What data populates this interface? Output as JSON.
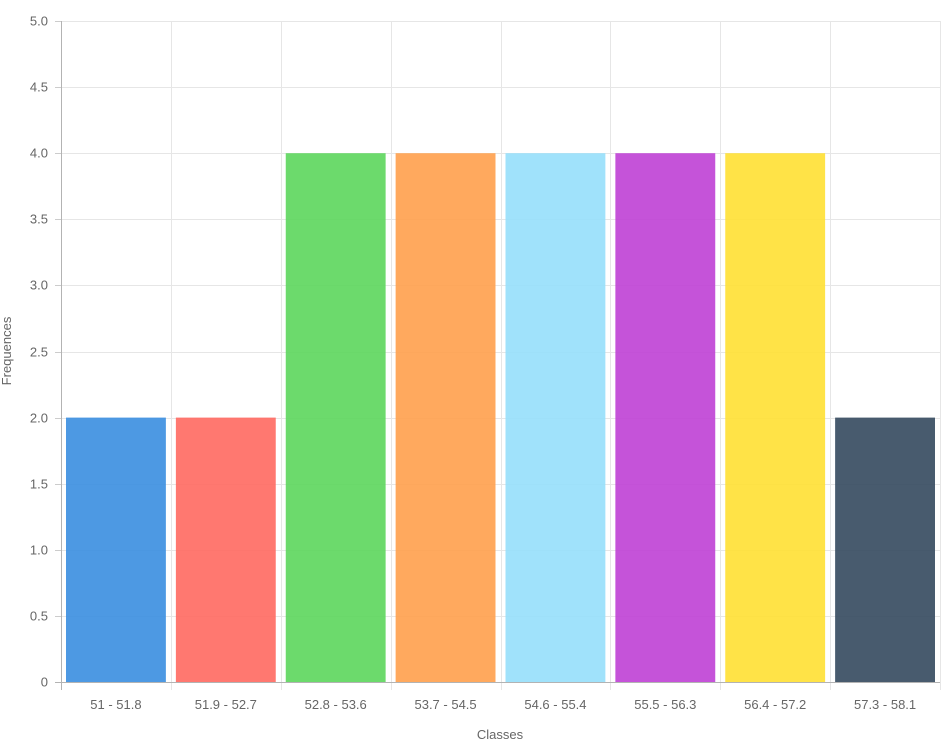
{
  "chart_data": {
    "type": "bar",
    "title": "",
    "xlabel": "Classes",
    "ylabel": "Frequences",
    "categories": [
      "51 - 51.8",
      "51.9 - 52.7",
      "52.8 - 53.6",
      "53.7 - 54.5",
      "54.6 - 55.4",
      "55.5 - 56.3",
      "56.4 - 57.2",
      "57.3 - 58.1"
    ],
    "values": [
      2,
      2,
      4,
      4,
      4,
      4,
      4,
      2
    ],
    "colors": [
      "#3a8ee0",
      "#ff6961",
      "#5cd65c",
      "#ffa04d",
      "#96dffb",
      "#bf40d5",
      "#ffe033",
      "#34495e"
    ],
    "ylim": [
      0,
      5
    ],
    "yticks": [
      "0",
      "0.5",
      "1.0",
      "1.5",
      "2.0",
      "2.5",
      "3.0",
      "3.5",
      "4.0",
      "4.5",
      "5.0"
    ],
    "grid": true,
    "legend": "none"
  }
}
